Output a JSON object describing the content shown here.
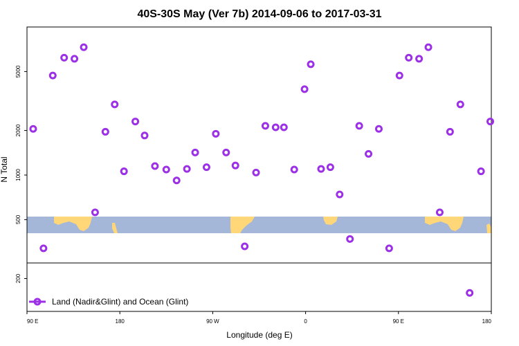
{
  "chart_data": {
    "type": "scatter",
    "title": "40S-30S May (Ver 7b)   2014-09-06 to 2017-03-31",
    "xlabel": "Longitude (deg E)",
    "ylabel": "N Total",
    "x_unwrapped_range": [
      90,
      540
    ],
    "y_scale": "log",
    "ylim": [
      120,
      10000
    ],
    "y_ticks": [
      {
        "value": 200,
        "label": "200"
      },
      {
        "value": 500,
        "label": "500"
      },
      {
        "value": 1000,
        "label": "1000"
      },
      {
        "value": 2000,
        "label": "2000"
      },
      {
        "value": 5000,
        "label": "5000"
      }
    ],
    "x_ticks": [
      {
        "x": 90,
        "label": "90 E"
      },
      {
        "x": 180,
        "label": "180"
      },
      {
        "x": 270,
        "label": "90 W"
      },
      {
        "x": 360,
        "label": "0"
      },
      {
        "x": 450,
        "label": "90 E"
      },
      {
        "x": 540,
        "label": "180"
      }
    ],
    "grid": false,
    "legend_position": "bottom-left",
    "series": [
      {
        "name": "Land (Nadir&Glint) and Ocean (Glint)",
        "color": "#9b30e6",
        "marker": "open-circle",
        "x": [
          96,
          106,
          115,
          126,
          136,
          145,
          156,
          166,
          175,
          184,
          195,
          204,
          214,
          225,
          235,
          245,
          253,
          264,
          273,
          283,
          292,
          301,
          312,
          321,
          331,
          339,
          349,
          359,
          365,
          375,
          384,
          393,
          403,
          412,
          421,
          431,
          441,
          451,
          460,
          470,
          479,
          490,
          500,
          510,
          519,
          530,
          539
        ],
        "y": [
          2050,
          320,
          4700,
          6200,
          6100,
          7300,
          560,
          1960,
          3000,
          1060,
          2300,
          1850,
          1150,
          1090,
          920,
          1100,
          1420,
          1130,
          1900,
          1420,
          1160,
          330,
          1040,
          2150,
          2100,
          2100,
          1090,
          3800,
          5600,
          1100,
          1130,
          740,
          370,
          2150,
          1390,
          2050,
          320,
          4700,
          6200,
          6100,
          7300,
          560,
          1960,
          3000,
          160,
          1060,
          2300
        ]
      }
    ]
  }
}
